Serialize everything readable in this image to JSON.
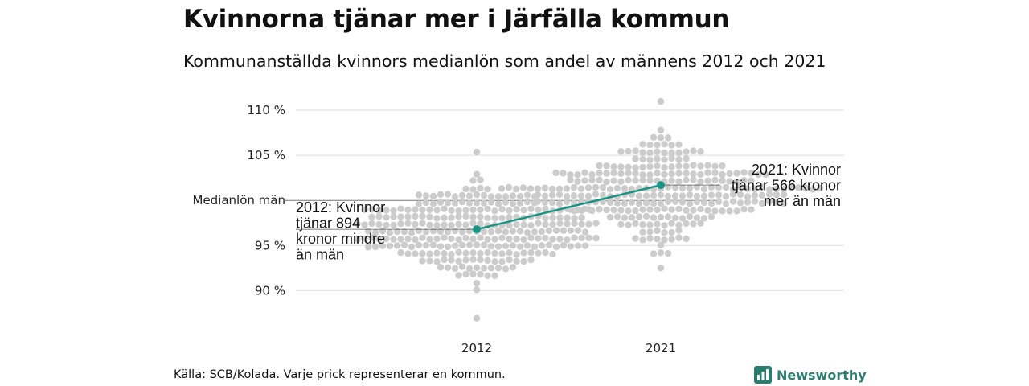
{
  "header": {
    "title": "Kvinnorna tjänar mer i Järfälla kommun",
    "subtitle": "Kommunanställda kvinnors medianlön som andel av männens 2012 och 2021"
  },
  "footer": {
    "source": "Källa: SCB/Kolada. Varje prick representerar en kommun.",
    "brand": "Newsworthy"
  },
  "icons": {
    "brand": "newsworthy-logo-icon"
  },
  "colors": {
    "dot": "#cccccc",
    "highlight": "#1a9482",
    "grid": "#dddddd",
    "reference": "#777777",
    "brand": "#2a7d6f"
  },
  "chart_data": {
    "type": "scatter",
    "title": "Kvinnorna tjänar mer i Järfälla kommun",
    "subtitle": "Kommunanställda kvinnors medianlön som andel av männens 2012 och 2021",
    "categories": [
      "2012",
      "2021"
    ],
    "ylim": [
      86,
      112
    ],
    "y_ticks": [
      {
        "value": 90,
        "label": "90 %"
      },
      {
        "value": 95,
        "label": "95 %"
      },
      {
        "value": 105,
        "label": "105 %"
      },
      {
        "value": 110,
        "label": "110 %"
      }
    ],
    "reference_line": {
      "value": 100,
      "label": "Medianlön män"
    },
    "grid": true,
    "distribution": {
      "description_counts": [
        290,
        290
      ],
      "2012": {
        "center": 96.6,
        "min": 86.7,
        "max": 105.2
      },
      "2021": {
        "center": 101.0,
        "min": 92.5,
        "max": 111.2
      }
    },
    "highlight": {
      "name": "Järfälla",
      "values": [
        {
          "x": "2012",
          "y": 96.8
        },
        {
          "x": "2021",
          "y": 101.7
        }
      ]
    },
    "annotations": [
      {
        "x": "2012",
        "lines": [
          "2012: Kvinnor",
          "tjänar 894",
          "kronor mindre",
          "än män"
        ]
      },
      {
        "x": "2021",
        "lines": [
          "2021: Kvinnor",
          "tjänar 566 kronor",
          "mer än män"
        ]
      }
    ]
  }
}
